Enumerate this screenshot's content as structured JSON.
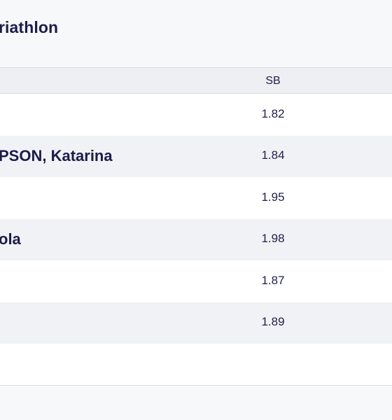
{
  "page": {
    "title": "riathlon"
  },
  "table": {
    "columns": {
      "sb": "SB"
    },
    "rows": [
      {
        "athlete": "",
        "sb": "1.82"
      },
      {
        "athlete": "PSON, Katarina",
        "sb": "1.84"
      },
      {
        "athlete": "",
        "sb": "1.95"
      },
      {
        "athlete": "ola",
        "sb": "1.98"
      },
      {
        "athlete": "",
        "sb": "1.87"
      },
      {
        "athlete": "",
        "sb": "1.89"
      }
    ]
  }
}
